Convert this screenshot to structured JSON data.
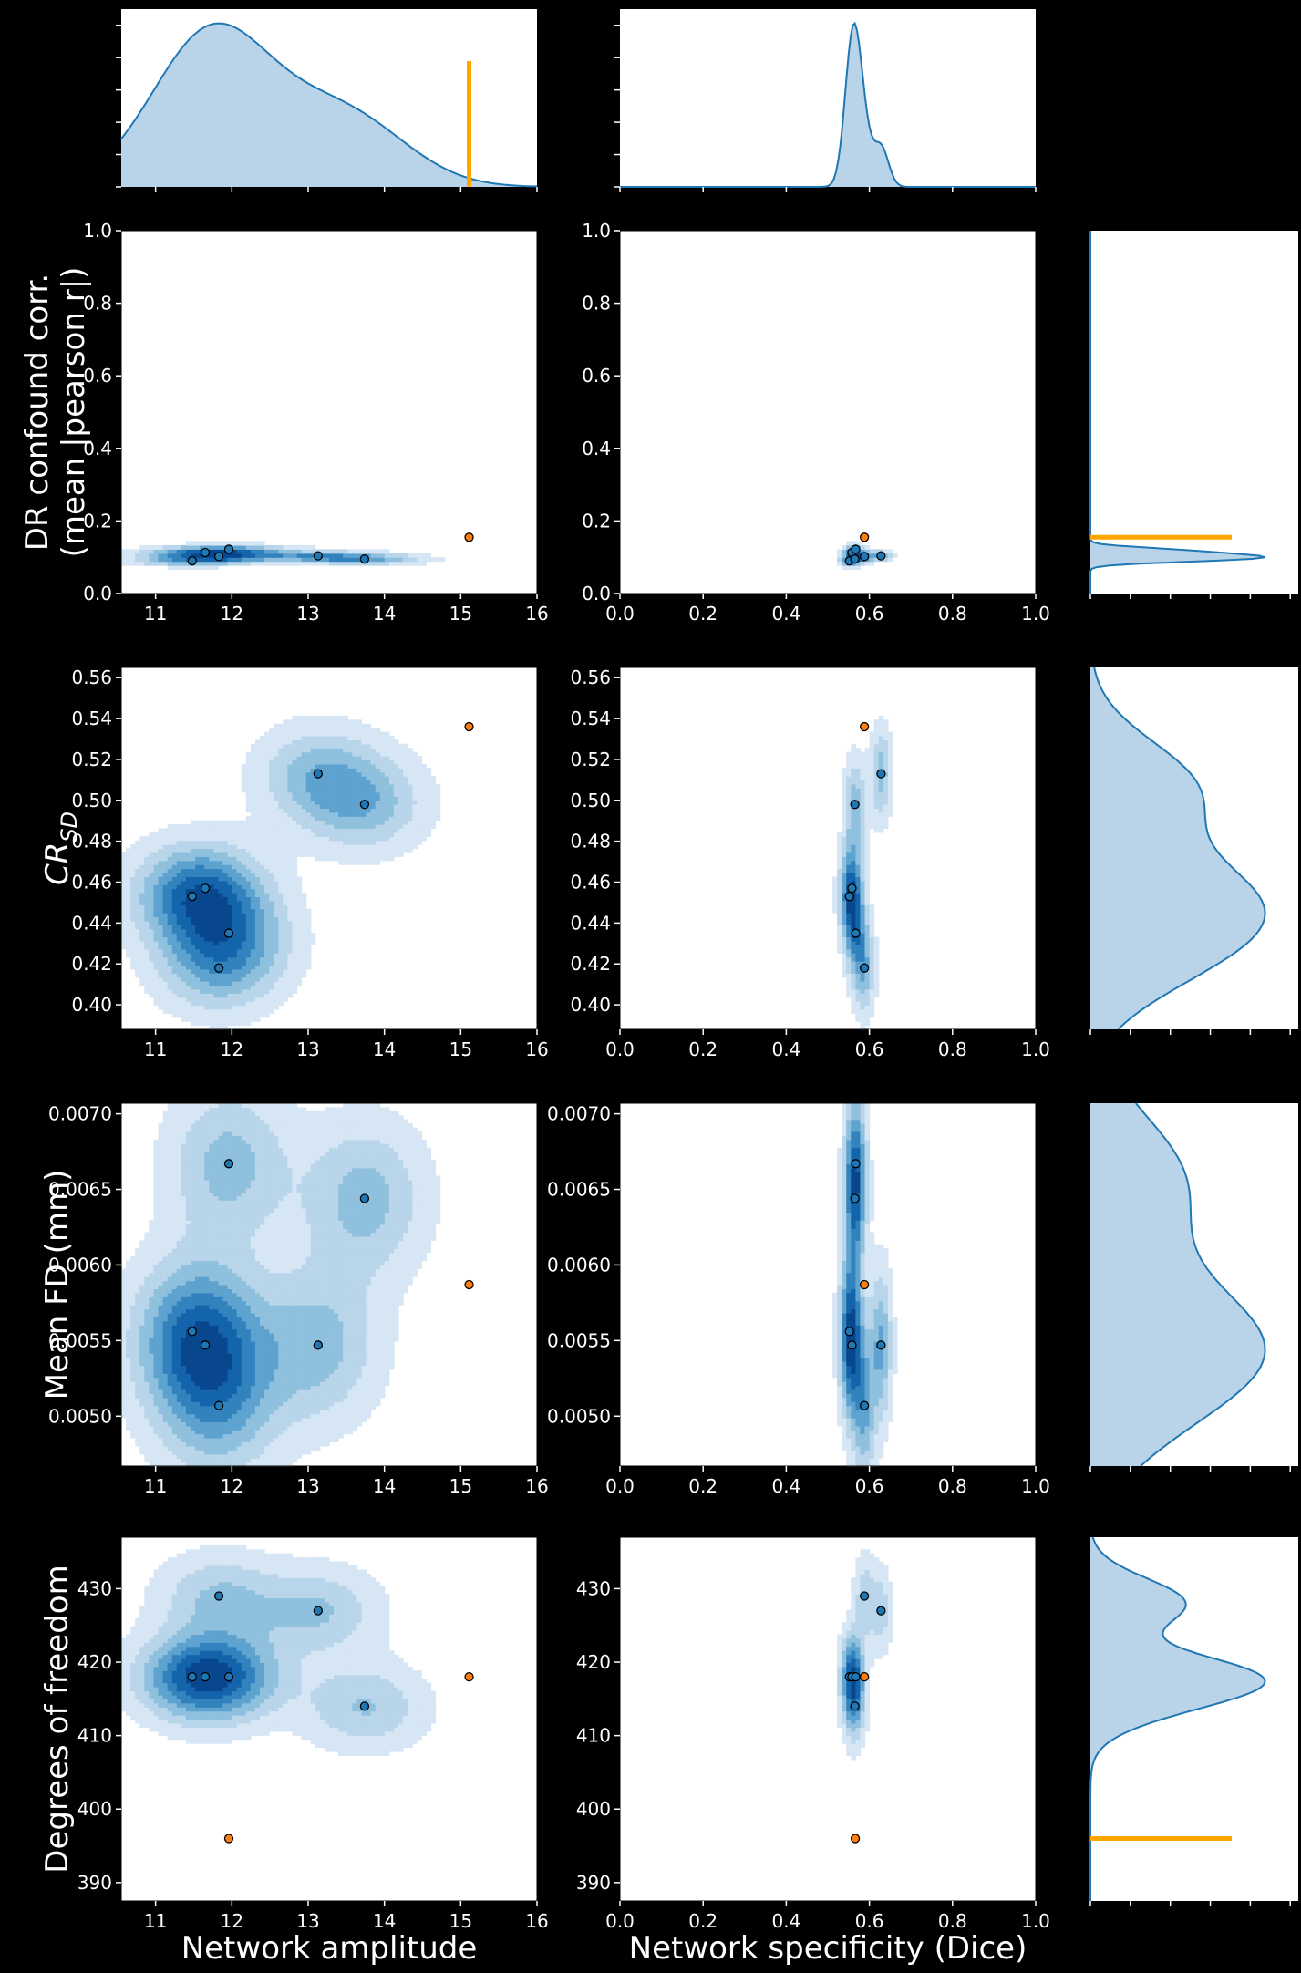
{
  "chart_data": {
    "type": "scatter",
    "layout": "pairplot",
    "x_variables": [
      {
        "label": "Network amplitude",
        "lim": [
          10.55,
          16
        ],
        "ticks": [
          11,
          12,
          13,
          14,
          15,
          16
        ],
        "tick_labels": [
          "11",
          "12",
          "13",
          "14",
          "15",
          "16"
        ]
      },
      {
        "label": "Network specificity (Dice)",
        "lim": [
          0,
          1
        ],
        "ticks": [
          0,
          0.2,
          0.4,
          0.6,
          0.8,
          1.0
        ],
        "tick_labels": [
          "0.0",
          "0.2",
          "0.4",
          "0.6",
          "0.8",
          "1.0"
        ]
      }
    ],
    "y_variables": [
      {
        "label_lines": [
          "DR confound corr.",
          "(mean |pearson r|)"
        ],
        "lim": [
          0,
          1
        ],
        "ticks": [
          0,
          0.2,
          0.4,
          0.6,
          0.8,
          1.0
        ],
        "tick_labels": [
          "0.0",
          "0.2",
          "0.4",
          "0.6",
          "0.8",
          "1.0"
        ]
      },
      {
        "label_main": "CR",
        "label_sub": "SD",
        "lim": [
          0.388,
          0.565
        ],
        "ticks": [
          0.4,
          0.42,
          0.44,
          0.46,
          0.48,
          0.5,
          0.52,
          0.54,
          0.56
        ],
        "tick_labels": [
          "0.40",
          "0.42",
          "0.44",
          "0.46",
          "0.48",
          "0.50",
          "0.52",
          "0.54",
          "0.56"
        ]
      },
      {
        "label": "Mean FD (mm)",
        "lim": [
          0.00467,
          0.00707
        ],
        "ticks": [
          0.005,
          0.0055,
          0.006,
          0.0065,
          0.007
        ],
        "tick_labels": [
          "0.0050",
          "0.0055",
          "0.0060",
          "0.0065",
          "0.0070"
        ]
      },
      {
        "label": "Degrees of freedom",
        "lim": [
          387.5,
          437
        ],
        "ticks": [
          390,
          400,
          410,
          420,
          430
        ],
        "tick_labels": [
          "390",
          "400",
          "410",
          "420",
          "430"
        ]
      }
    ],
    "series": [
      {
        "color": "#1f77b4",
        "points": [
          {
            "amplitude": 11.48,
            "specificity": 0.552,
            "dr_corr": 0.09,
            "cr_sd": 0.453,
            "mean_fd": 0.00556,
            "dof": 418
          },
          {
            "amplitude": 11.65,
            "specificity": 0.558,
            "dr_corr": 0.113,
            "cr_sd": 0.457,
            "mean_fd": 0.00547,
            "dof": 418
          },
          {
            "amplitude": 11.83,
            "specificity": 0.588,
            "dr_corr": 0.102,
            "cr_sd": 0.418,
            "mean_fd": 0.00507,
            "dof": 429
          },
          {
            "amplitude": 11.96,
            "specificity": 0.567,
            "dr_corr": 0.122,
            "cr_sd": 0.435,
            "mean_fd": 0.00667,
            "dof": 418
          },
          {
            "amplitude": 13.13,
            "specificity": 0.628,
            "dr_corr": 0.104,
            "cr_sd": 0.513,
            "mean_fd": 0.00547,
            "dof": 427
          },
          {
            "amplitude": 13.74,
            "specificity": 0.565,
            "dr_corr": 0.095,
            "cr_sd": 0.498,
            "mean_fd": 0.00644,
            "dof": 414
          }
        ]
      },
      {
        "color": "#ff7f0e",
        "points": [
          {
            "amplitude": 15.11,
            "specificity": 0.588,
            "dr_corr": 0.155,
            "cr_sd": 0.536,
            "mean_fd": 0.00587,
            "dof": 418
          },
          {
            "amplitude": 11.96,
            "specificity": 0.566,
            "dr_corr": 0.155,
            "cr_sd": 0.536,
            "mean_fd": 0.00587,
            "dof": 396
          }
        ]
      }
    ],
    "highlight_lines": {
      "color": "#ffa500",
      "amplitude": 15.11,
      "dr_corr": 0.155,
      "dof": 396
    },
    "kde_fill_color": "#b9d3e8",
    "kde_line_color": "#1f77b4",
    "contour_colors": [
      "#d6e6f4",
      "#b8d5ea",
      "#8fc0de",
      "#5ea3cf",
      "#3282be",
      "#1464ac",
      "#08468e"
    ]
  }
}
